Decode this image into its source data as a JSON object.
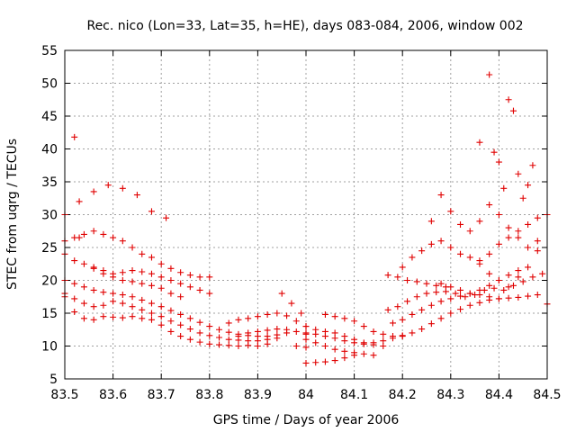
{
  "chart_data": {
    "type": "scatter",
    "title": "Rec. nico (Lon=33, Lat=35, h=HE), days 083-084, 2006, window 002",
    "xlabel": "GPS time / Days of year 2006",
    "ylabel": "STEC from uqrg / TECUs",
    "xlim": [
      83.5,
      84.5
    ],
    "ylim": [
      5,
      55
    ],
    "xticks": [
      "83.5",
      "83.6",
      "83.7",
      "83.8",
      "83.9",
      "84",
      "84.1",
      "84.2",
      "84.3",
      "84.4",
      "84.5"
    ],
    "yticks": [
      "5",
      "10",
      "15",
      "20",
      "25",
      "30",
      "35",
      "40",
      "45",
      "50",
      "55"
    ],
    "grid": true,
    "marker": "+",
    "color": "#e00000",
    "tracks": [
      {
        "x": [
          83.5,
          83.52,
          83.54,
          83.56,
          83.58,
          83.6,
          83.62,
          83.64,
          83.66,
          83.68,
          83.7,
          83.72,
          83.74,
          83.76,
          83.78,
          83.8,
          83.82,
          83.84,
          83.86,
          83.88,
          83.9,
          83.92
        ],
        "y": [
          17.5,
          15.2,
          14.2,
          14.0,
          14.5,
          14.4,
          14.3,
          14.5,
          14.2,
          14.0,
          13.2,
          12.2,
          11.5,
          11.0,
          10.6,
          10.3,
          10.2,
          10.1,
          10.0,
          10.1,
          10.0,
          10.3
        ]
      },
      {
        "x": [
          83.5,
          83.52,
          83.54,
          83.56,
          83.58,
          83.6,
          83.62,
          83.64,
          83.66,
          83.68,
          83.7,
          83.72,
          83.74,
          83.76,
          83.78,
          83.8,
          83.82,
          83.84,
          83.86,
          83.88,
          83.9,
          83.92,
          83.94
        ],
        "y": [
          18.0,
          17.2,
          16.5,
          16.0,
          16.2,
          16.8,
          16.5,
          16.0,
          15.5,
          15.0,
          14.5,
          13.8,
          13.2,
          12.6,
          12.0,
          11.6,
          11.3,
          11.0,
          10.9,
          10.8,
          10.8,
          11.0,
          11.2
        ]
      },
      {
        "x": [
          83.5,
          83.52,
          83.54,
          83.56,
          83.58,
          83.6,
          83.62,
          83.64,
          83.66,
          83.68,
          83.7,
          83.72,
          83.74,
          83.76,
          83.78,
          83.8,
          83.82,
          83.84,
          83.86,
          83.88,
          83.9,
          83.92,
          83.94,
          83.96
        ],
        "y": [
          20.0,
          19.5,
          19.0,
          18.5,
          18.2,
          18.0,
          17.8,
          17.5,
          17.0,
          16.5,
          16.0,
          15.4,
          14.8,
          14.2,
          13.6,
          13.0,
          12.5,
          12.1,
          11.8,
          11.6,
          11.5,
          11.5,
          11.7,
          12.0
        ]
      },
      {
        "x": [
          83.5,
          83.52,
          83.54,
          83.56,
          83.58,
          83.6,
          83.62,
          83.64,
          83.66,
          83.68,
          83.7,
          83.72,
          83.74,
          83.76,
          83.78,
          83.8
        ],
        "y": [
          24.0,
          23.0,
          22.5,
          22.0,
          21.5,
          21.0,
          21.2,
          21.5,
          21.3,
          21.0,
          20.5,
          20.0,
          19.5,
          19.0,
          18.5,
          18.0
        ]
      },
      {
        "x": [
          83.5,
          83.52,
          83.54,
          83.56,
          83.58,
          83.6,
          83.62,
          83.64,
          83.66,
          83.68,
          83.7,
          83.72,
          83.74,
          83.76,
          83.78,
          83.8
        ],
        "y": [
          26.0,
          26.5,
          27.0,
          27.5,
          27.0,
          26.5,
          26.0,
          25.0,
          24.0,
          23.5,
          22.5,
          21.8,
          21.2,
          20.8,
          20.5,
          20.5
        ]
      },
      {
        "x": [
          83.5,
          83.53,
          83.56,
          83.59,
          83.62,
          83.65,
          83.68,
          83.71
        ],
        "y": [
          30.0,
          32.0,
          33.5,
          34.5,
          34.0,
          33.0,
          30.5,
          29.5
        ]
      },
      {
        "x": [
          83.52,
          83.53
        ],
        "y": [
          41.8,
          26.5
        ]
      },
      {
        "x": [
          83.56,
          83.58,
          83.6,
          83.62,
          83.64,
          83.66,
          83.68,
          83.7,
          83.72,
          83.74
        ],
        "y": [
          21.8,
          21.0,
          20.5,
          20.0,
          19.8,
          19.5,
          19.2,
          18.8,
          18.0,
          17.5
        ]
      },
      {
        "x": [
          83.84,
          83.86,
          83.88,
          83.9,
          83.92,
          83.94,
          83.96,
          83.98,
          84.0
        ],
        "y": [
          13.5,
          14.0,
          14.2,
          14.5,
          14.8,
          15.0,
          14.6,
          13.8,
          13.0
        ]
      },
      {
        "x": [
          83.86,
          83.88,
          83.9,
          83.92,
          83.94,
          83.96,
          83.98,
          84.0
        ],
        "y": [
          11.5,
          12.0,
          12.2,
          12.4,
          12.6,
          12.5,
          12.2,
          11.8
        ]
      },
      {
        "x": [
          83.95,
          83.97,
          83.99
        ],
        "y": [
          18.0,
          16.5,
          15.0
        ]
      },
      {
        "x": [
          83.98,
          84.0
        ],
        "y": [
          10.0,
          9.8
        ]
      },
      {
        "x": [
          84.0,
          84.02,
          84.04,
          84.06,
          84.08,
          84.1,
          84.12,
          84.14,
          84.16,
          84.18,
          84.2
        ],
        "y": [
          12.0,
          11.8,
          11.5,
          11.2,
          10.8,
          10.5,
          10.3,
          10.5,
          10.8,
          11.2,
          11.5
        ]
      },
      {
        "x": [
          84.0,
          84.02,
          84.04,
          84.06,
          84.08,
          84.1,
          84.12,
          84.14,
          84.16
        ],
        "y": [
          13.0,
          12.5,
          12.2,
          12.0,
          11.5,
          11.0,
          10.5,
          10.2,
          10.0
        ]
      },
      {
        "x": [
          84.0,
          84.02,
          84.04,
          84.06,
          84.08,
          84.1,
          84.12,
          84.14
        ],
        "y": [
          11.0,
          10.5,
          10.0,
          9.5,
          9.2,
          9.0,
          8.8,
          8.6
        ]
      },
      {
        "x": [
          84.0,
          84.02,
          84.04,
          84.06,
          84.08,
          84.1
        ],
        "y": [
          7.4,
          7.5,
          7.6,
          7.8,
          8.2,
          8.6
        ]
      },
      {
        "x": [
          84.04,
          84.06,
          84.08,
          84.1,
          84.12,
          84.14,
          84.16,
          84.18,
          84.2,
          84.22,
          84.24,
          84.26,
          84.28,
          84.3,
          84.32,
          84.34,
          84.36,
          84.38,
          84.4,
          84.42,
          84.44,
          84.46,
          84.48,
          84.5
        ],
        "y": [
          14.8,
          14.5,
          14.2,
          13.8,
          13.0,
          12.2,
          11.8,
          11.5,
          11.6,
          12.0,
          12.6,
          13.4,
          14.2,
          15.0,
          15.6,
          16.2,
          16.6,
          17.0,
          17.2,
          17.3,
          17.4,
          17.6,
          17.8,
          16.4
        ]
      },
      {
        "x": [
          84.17,
          84.19,
          84.21,
          84.23,
          84.25,
          84.27,
          84.29,
          84.31,
          84.33,
          84.35,
          84.37,
          84.39,
          84.41,
          84.43,
          84.45,
          84.47,
          84.49
        ],
        "y": [
          15.5,
          16.0,
          16.8,
          17.5,
          18.0,
          18.2,
          18.3,
          18.0,
          17.5,
          17.8,
          18.5,
          18.8,
          18.5,
          19.2,
          19.8,
          20.5,
          21.0
        ]
      },
      {
        "x": [
          84.18,
          84.2,
          84.22,
          84.24,
          84.26,
          84.28,
          84.3,
          84.32,
          84.34,
          84.36,
          84.38,
          84.4,
          84.42,
          84.44
        ],
        "y": [
          13.5,
          14.0,
          14.8,
          15.5,
          16.2,
          16.8,
          17.2,
          17.6,
          18.0,
          18.5,
          19.2,
          20.0,
          20.8,
          21.5
        ]
      },
      {
        "x": [
          84.17,
          84.19,
          84.21,
          84.23,
          84.25,
          84.27,
          84.29
        ],
        "y": [
          20.8,
          20.5,
          20.0,
          19.8,
          19.5,
          19.2,
          19.0
        ]
      },
      {
        "x": [
          84.2,
          84.22,
          84.24,
          84.26,
          84.28,
          84.3,
          84.32,
          84.34,
          84.36,
          84.38,
          84.4,
          84.42,
          84.44,
          84.46,
          84.48,
          84.5
        ],
        "y": [
          22.0,
          23.5,
          24.5,
          25.5,
          26.0,
          25.0,
          24.0,
          23.5,
          23.0,
          24.0,
          25.5,
          26.5,
          27.5,
          28.5,
          29.5,
          30.0
        ]
      },
      {
        "x": [
          84.26,
          84.28,
          84.3,
          84.32,
          84.34,
          84.36,
          84.38,
          84.4,
          84.42,
          84.44,
          84.46,
          84.48
        ],
        "y": [
          29.0,
          33.0,
          30.5,
          28.5,
          27.5,
          29.0,
          31.5,
          30.0,
          28.0,
          26.5,
          25.0,
          24.5
        ]
      },
      {
        "x": [
          84.36,
          84.38,
          84.39,
          84.4,
          84.41,
          84.42,
          84.43,
          84.44,
          84.45,
          84.46,
          84.47
        ],
        "y": [
          41.0,
          51.3,
          39.5,
          38.0,
          34.0,
          47.5,
          45.8,
          36.2,
          32.5,
          34.5,
          37.5
        ]
      },
      {
        "x": [
          84.36,
          84.38,
          84.4,
          84.42,
          84.44,
          84.46,
          84.48
        ],
        "y": [
          22.5,
          21.0,
          20.0,
          19.0,
          20.5,
          22.0,
          26.0
        ]
      },
      {
        "x": [
          84.28,
          84.3,
          84.32,
          84.34,
          84.36,
          84.38,
          84.4
        ],
        "y": [
          19.5,
          19.0,
          18.5,
          18.0,
          17.8,
          17.5,
          17.2
        ]
      }
    ]
  }
}
